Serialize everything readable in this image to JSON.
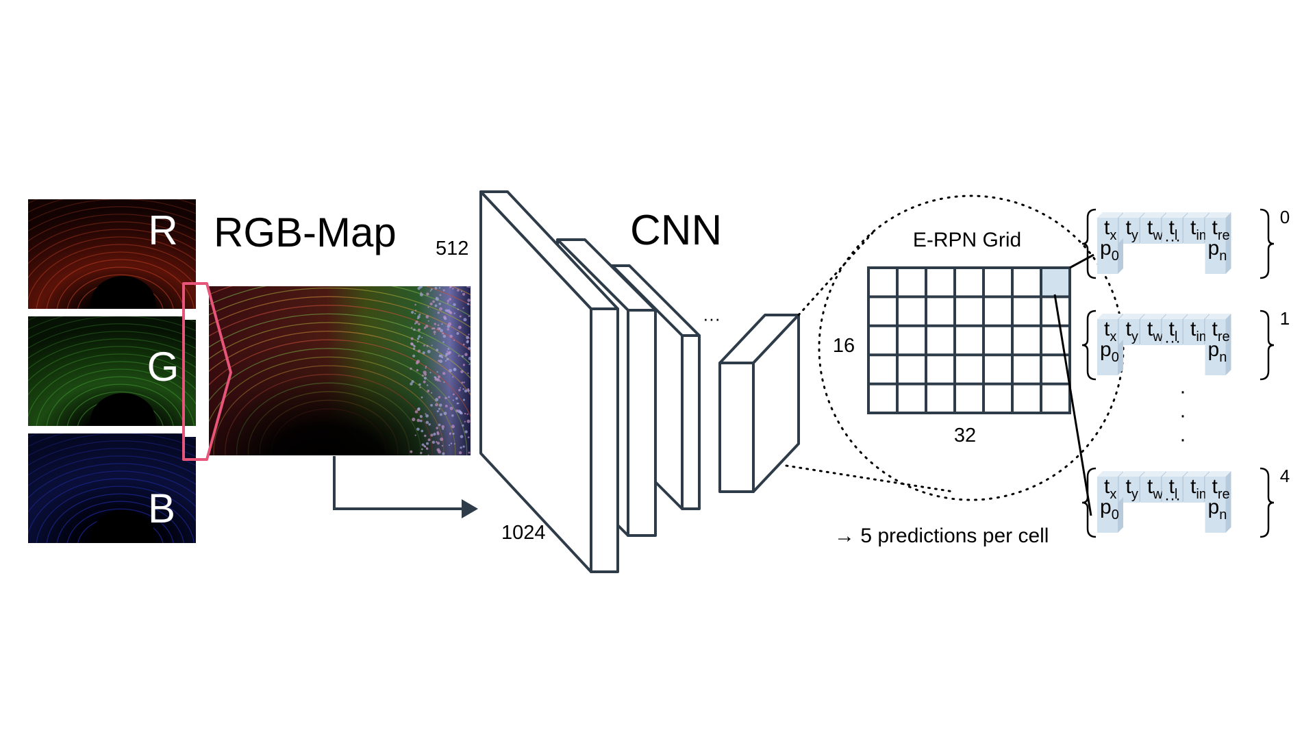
{
  "channels": {
    "r_label": "R",
    "g_label": "G",
    "b_label": "B"
  },
  "titles": {
    "rgb_map": "RGB-Map",
    "cnn": "CNN",
    "grid": "E-RPN Grid"
  },
  "dims": {
    "input_height": "512",
    "input_width": "1024",
    "grid_rows": "16",
    "grid_cols": "32"
  },
  "ellipsis_h": "···",
  "caption": "→ 5 predictions per cell",
  "prediction_vectors": [
    {
      "index": "0"
    },
    {
      "index": "1"
    },
    {
      "index": "4"
    }
  ],
  "vector_labels": {
    "top": [
      {
        "base": "t",
        "sub": "x"
      },
      {
        "base": "t",
        "sub": "y"
      },
      {
        "base": "t",
        "sub": "w"
      },
      {
        "base": "t",
        "sub": "l"
      },
      {
        "base": "t",
        "sub": "im"
      },
      {
        "base": "t",
        "sub": "re"
      }
    ],
    "p_first": {
      "base": "p",
      "sub": "0"
    },
    "p_dots": "···",
    "p_last": {
      "base": "p",
      "sub": "n"
    }
  },
  "vertical_dots": "·",
  "colors": {
    "stroke": "#2e3b48",
    "highlight_bracket": "#e8557a",
    "vector_fill": "#d2e1ee",
    "vector_side": "#b7cbdc"
  }
}
